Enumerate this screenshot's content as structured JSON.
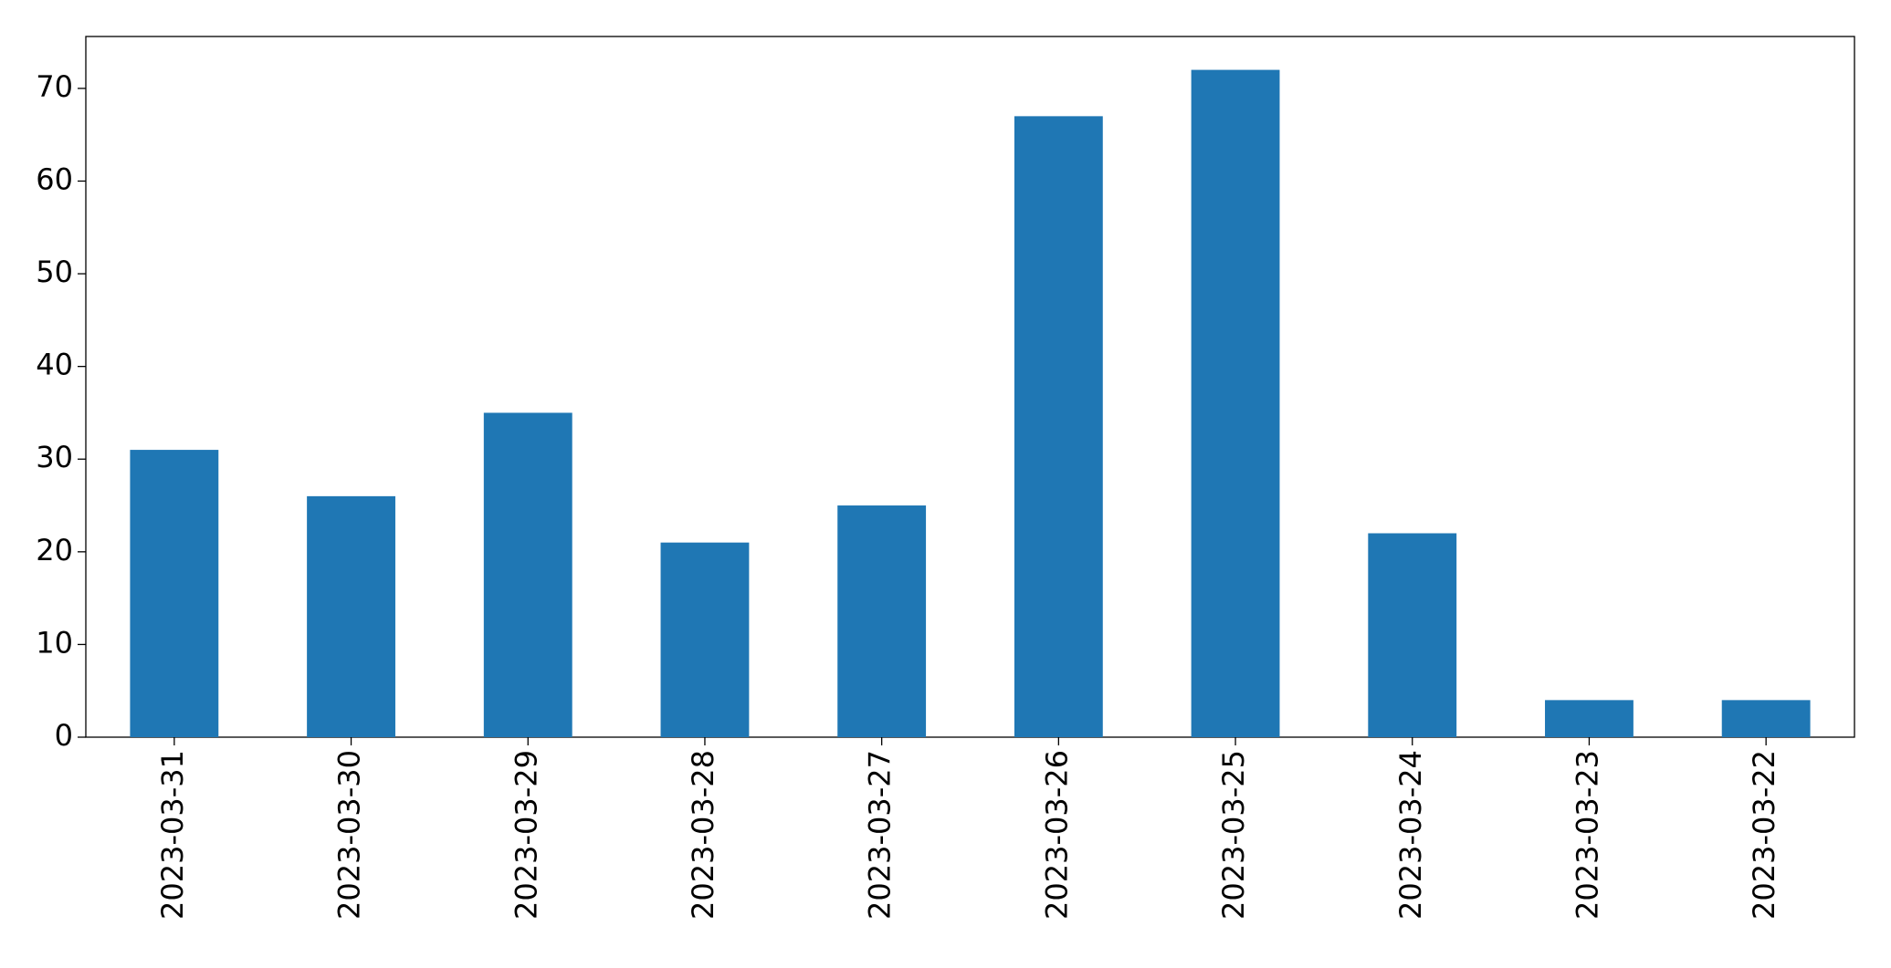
{
  "chart_data": {
    "type": "bar",
    "categories": [
      "2023-03-31",
      "2023-03-30",
      "2023-03-29",
      "2023-03-28",
      "2023-03-27",
      "2023-03-26",
      "2023-03-25",
      "2023-03-24",
      "2023-03-23",
      "2023-03-22"
    ],
    "values": [
      31,
      26,
      35,
      21,
      25,
      67,
      72,
      22,
      4,
      4
    ],
    "color": "#1f77b4",
    "ylim": [
      0,
      75.6
    ],
    "yticks": [
      0,
      10,
      20,
      30,
      40,
      50,
      60,
      70
    ],
    "grid": false
  }
}
